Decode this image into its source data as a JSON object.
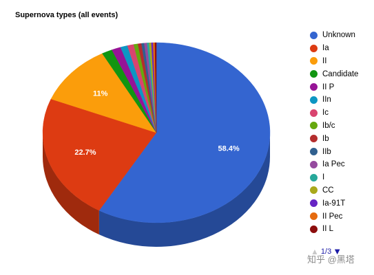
{
  "chart_data": {
    "type": "pie",
    "title": "Supernova types (all events)",
    "slices": [
      {
        "label": "Unknown",
        "value": 58.4,
        "color": "#3465d0",
        "shown_label": "58.4%"
      },
      {
        "label": "Ia",
        "value": 22.7,
        "color": "#dd3b12",
        "shown_label": "22.7%"
      },
      {
        "label": "II",
        "value": 11.0,
        "color": "#fb9d0b",
        "shown_label": "11%"
      },
      {
        "label": "Candidate",
        "value": 1.5,
        "color": "#119511",
        "shown_label": ""
      },
      {
        "label": "II P",
        "value": 1.3,
        "color": "#961496",
        "shown_label": ""
      },
      {
        "label": "IIn",
        "value": 1.0,
        "color": "#0d96c3",
        "shown_label": ""
      },
      {
        "label": "Ic",
        "value": 0.9,
        "color": "#d9446f",
        "shown_label": ""
      },
      {
        "label": "Ib/c",
        "value": 0.6,
        "color": "#66a80e",
        "shown_label": ""
      },
      {
        "label": "Ib",
        "value": 0.5,
        "color": "#b42d2d",
        "shown_label": ""
      },
      {
        "label": "IIb",
        "value": 0.4,
        "color": "#30608f",
        "shown_label": ""
      },
      {
        "label": "Ia Pec",
        "value": 0.4,
        "color": "#954a9e",
        "shown_label": ""
      },
      {
        "label": "I",
        "value": 0.3,
        "color": "#27a89a",
        "shown_label": ""
      },
      {
        "label": "CC",
        "value": 0.3,
        "color": "#a9a91b",
        "shown_label": ""
      },
      {
        "label": "Ia-91T",
        "value": 0.25,
        "color": "#6624c4",
        "shown_label": ""
      },
      {
        "label": "II Pec",
        "value": 0.25,
        "color": "#e56a0e",
        "shown_label": ""
      },
      {
        "label": "II L",
        "value": 0.2,
        "color": "#8c0d0d",
        "shown_label": ""
      }
    ],
    "legend_position": "right"
  },
  "legend": {
    "page": "1/3",
    "up_arrow": "▲",
    "down_arrow": "▼"
  },
  "watermark": "知乎 @黑塔"
}
